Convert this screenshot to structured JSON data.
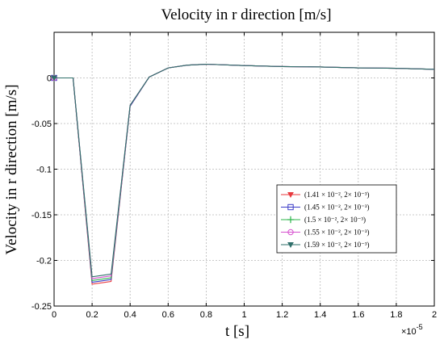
{
  "chart_data": {
    "type": "line",
    "title": "Velocity in r direction  [m/s]",
    "xlabel": "t [s]",
    "ylabel": "Velocity in  r direction [m/s]",
    "x_multiplier": "×10",
    "x_exponent": "-5",
    "xlim": [
      0,
      2
    ],
    "ylim": [
      -0.25,
      0.05
    ],
    "x_ticks": [
      "0",
      "0.2",
      "0.4",
      "0.6",
      "0.8",
      "1",
      "1.2",
      "1.4",
      "1.6",
      "1.8",
      "2"
    ],
    "y_ticks": [
      "-0.25",
      "-0.2",
      "-0.15",
      "-0.1",
      "-0.05",
      "0"
    ],
    "grid": true,
    "legend_position": "lower-right",
    "x": [
      0,
      0.1,
      0.2,
      0.3,
      0.4,
      0.5,
      0.6,
      0.7,
      0.8,
      1.0,
      1.2,
      1.4,
      1.6,
      1.8,
      2.0
    ],
    "series": [
      {
        "name": "(1.41 × 10⁻², 2× 10⁻³)",
        "color": "#e8383d",
        "marker": "triangle-down",
        "values": [
          0,
          0,
          -0.226,
          -0.223,
          -0.031,
          0.001,
          0.011,
          0.014,
          0.015,
          0.0135,
          0.0125,
          0.012,
          0.011,
          0.0105,
          0.0095
        ]
      },
      {
        "name": "(1.45 × 10⁻², 2× 10⁻³)",
        "color": "#3c3cc8",
        "marker": "square",
        "values": [
          0,
          0,
          -0.224,
          -0.221,
          -0.031,
          0.001,
          0.011,
          0.014,
          0.015,
          0.0135,
          0.0125,
          0.012,
          0.011,
          0.0105,
          0.0095
        ]
      },
      {
        "name": "(1.5 × 10⁻², 2× 10⁻³)",
        "color": "#2bb54a",
        "marker": "plus",
        "values": [
          0,
          0,
          -0.222,
          -0.219,
          -0.03,
          0.001,
          0.011,
          0.014,
          0.015,
          0.0135,
          0.0125,
          0.012,
          0.011,
          0.0105,
          0.0095
        ]
      },
      {
        "name": "(1.55 × 10⁻², 2× 10⁻³)",
        "color": "#d64fcf",
        "marker": "circle",
        "values": [
          0,
          0,
          -0.22,
          -0.217,
          -0.03,
          0.001,
          0.011,
          0.014,
          0.015,
          0.0135,
          0.0125,
          0.012,
          0.011,
          0.0105,
          0.0095
        ]
      },
      {
        "name": "(1.59 × 10⁻², 2× 10⁻³)",
        "color": "#2f6f6a",
        "marker": "triangle-down",
        "values": [
          0,
          0,
          -0.218,
          -0.215,
          -0.03,
          0.001,
          0.011,
          0.014,
          0.015,
          0.0135,
          0.0125,
          0.012,
          0.011,
          0.0105,
          0.0095
        ]
      }
    ]
  }
}
